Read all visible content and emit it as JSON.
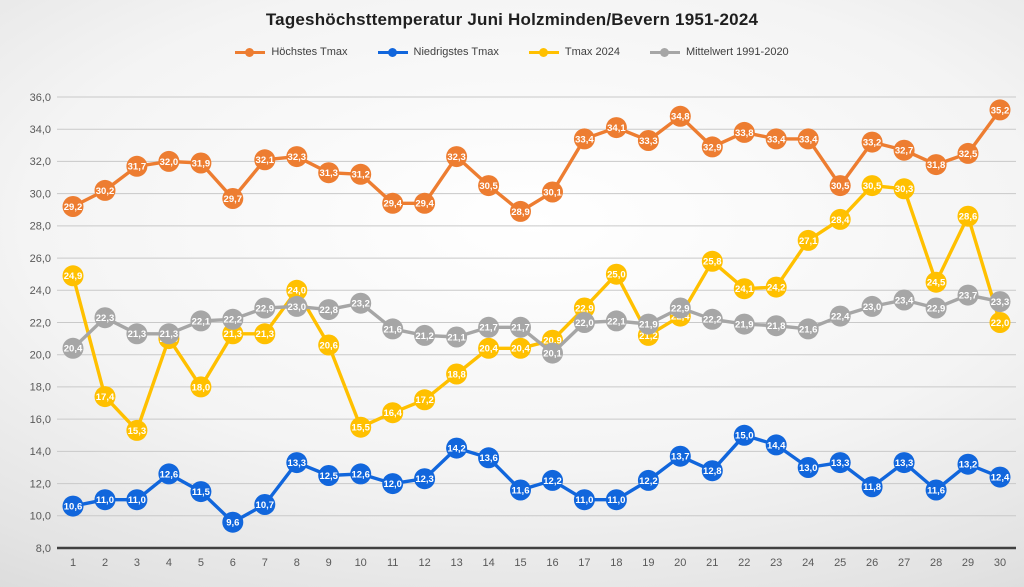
{
  "title": "Tageshöchsttemperatur Juni Holzminden/Bevern 1951-2024",
  "chart_data": {
    "type": "line",
    "x": [
      1,
      2,
      3,
      4,
      5,
      6,
      7,
      8,
      9,
      10,
      11,
      12,
      13,
      14,
      15,
      16,
      17,
      18,
      19,
      20,
      21,
      22,
      23,
      24,
      25,
      26,
      27,
      28,
      29,
      30
    ],
    "xlabel": "",
    "ylabel": "",
    "ylim": [
      8.0,
      36.0
    ],
    "ytick_step": 2.0,
    "decimal_separator": ",",
    "grid": "horizontal",
    "legend_position": "top",
    "data_labels": "on-marker-white-bold",
    "series": [
      {
        "name": "Höchstes Tmax",
        "color": "#ED7D31",
        "values": [
          29.2,
          30.2,
          31.7,
          32.0,
          31.9,
          29.7,
          32.1,
          32.3,
          31.3,
          31.2,
          29.4,
          29.4,
          32.3,
          30.5,
          28.9,
          30.1,
          33.4,
          34.1,
          33.3,
          34.8,
          32.9,
          33.8,
          33.4,
          33.4,
          30.5,
          33.2,
          32.7,
          31.8,
          32.5,
          35.2
        ]
      },
      {
        "name": "Niedrigstes Tmax",
        "color": "#1166DC",
        "values": [
          10.6,
          11.0,
          11.0,
          12.6,
          11.5,
          9.6,
          10.7,
          13.3,
          12.5,
          12.6,
          12.0,
          12.3,
          14.2,
          13.6,
          11.6,
          12.2,
          11.0,
          11.0,
          12.2,
          13.7,
          12.8,
          15.0,
          14.4,
          13.0,
          13.3,
          11.8,
          13.3,
          11.6,
          13.2,
          12.4
        ]
      },
      {
        "name": "Tmax 2024",
        "color": "#FFC000",
        "values": [
          24.9,
          17.4,
          15.3,
          21.0,
          18.0,
          21.3,
          21.3,
          24.0,
          20.6,
          15.5,
          16.4,
          17.2,
          18.8,
          20.4,
          20.4,
          20.9,
          22.9,
          25.0,
          21.2,
          22.4,
          25.8,
          24.1,
          24.2,
          27.1,
          28.4,
          30.5,
          30.3,
          24.5,
          28.6,
          22.0
        ]
      },
      {
        "name": "Mittelwert 1991-2020",
        "color": "#A6A6A6",
        "values": [
          20.4,
          22.3,
          21.3,
          21.3,
          22.1,
          22.2,
          22.9,
          23.0,
          22.8,
          23.2,
          21.6,
          21.2,
          21.1,
          21.7,
          21.7,
          20.1,
          22.0,
          22.1,
          21.9,
          22.9,
          22.2,
          21.9,
          21.8,
          21.6,
          22.4,
          23.0,
          23.4,
          22.9,
          23.7,
          23.3
        ]
      }
    ]
  }
}
